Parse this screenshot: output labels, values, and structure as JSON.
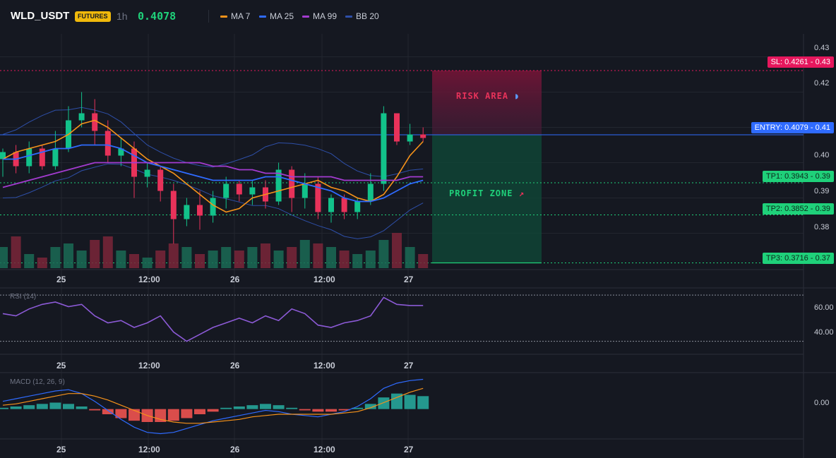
{
  "header": {
    "symbol": "WLD_USDT",
    "badge": "FUTURES",
    "timeframe": "1h",
    "price": "0.4078",
    "legend": [
      {
        "label": "MA 7",
        "color": "#f7931a"
      },
      {
        "label": "MA 25",
        "color": "#2f6bff"
      },
      {
        "label": "MA 99",
        "color": "#a33bd0"
      },
      {
        "label": "BB 20",
        "color": "#2e4fa8"
      }
    ]
  },
  "colors": {
    "up": "#12c28a",
    "down": "#e8325a",
    "background": "#151821",
    "grid": "#22262f"
  },
  "levels": {
    "sl": {
      "text": "SL: 0.4261",
      "axis": "0.43",
      "value": 0.4261,
      "color": "#e6175d"
    },
    "entry": {
      "text": "ENTRY: 0.4079",
      "axis": "0.41",
      "value": 0.4079,
      "color": "#2f6bff"
    },
    "tp1": {
      "text": "TP1: 0.3943",
      "axis": "0.39",
      "value": 0.3943,
      "color": "#1fd17a"
    },
    "tp2": {
      "text": "TP2: 0.3852",
      "axis": "0.39",
      "value": 0.3852,
      "color": "#1fd17a"
    },
    "tp3": {
      "text": "TP3: 0.3716",
      "axis": "0.37",
      "value": 0.3716,
      "color": "#1fd17a"
    }
  },
  "zones": {
    "risk": "RISK AREA",
    "profit": "PROFIT ZONE"
  },
  "price_axis": [
    "0.43",
    "0.42",
    "0.41",
    "0.40",
    "0.39",
    "0.38",
    "0.37"
  ],
  "time_axis": [
    "25",
    "12:00",
    "26",
    "12:00",
    "27"
  ],
  "rsi": {
    "title": "RSI (14)",
    "axis": [
      "60.00",
      "40.00"
    ]
  },
  "macd": {
    "title": "MACD (12, 26, 9)",
    "axis": [
      "0.00"
    ]
  },
  "chart_data": {
    "type": "candlestick",
    "ylim": [
      0.3705,
      0.4325
    ],
    "x_ticks": [
      "25",
      "12:00",
      "26",
      "12:00",
      "27"
    ],
    "series": [
      {
        "name": "MA 7",
        "values": [
          0.401,
          0.403,
          0.404,
          0.405,
          0.406,
          0.408,
          0.411,
          0.412,
          0.41,
          0.407,
          0.404,
          0.401,
          0.399,
          0.397,
          0.394,
          0.391,
          0.388,
          0.386,
          0.387,
          0.39,
          0.391,
          0.392,
          0.393,
          0.394,
          0.395,
          0.393,
          0.392,
          0.39,
          0.389,
          0.391,
          0.396,
          0.402,
          0.406
        ]
      },
      {
        "name": "MA 25",
        "values": [
          0.401,
          0.401,
          0.402,
          0.403,
          0.404,
          0.404,
          0.405,
          0.405,
          0.405,
          0.404,
          0.402,
          0.4,
          0.399,
          0.398,
          0.397,
          0.396,
          0.395,
          0.395,
          0.395,
          0.395,
          0.396,
          0.396,
          0.395,
          0.394,
          0.393,
          0.392,
          0.39,
          0.389,
          0.389,
          0.39,
          0.392,
          0.394,
          0.395
        ]
      },
      {
        "name": "MA 99",
        "values": [
          0.393,
          0.394,
          0.395,
          0.396,
          0.397,
          0.398,
          0.399,
          0.4,
          0.4,
          0.4,
          0.4,
          0.4,
          0.4,
          0.4,
          0.4,
          0.4,
          0.399,
          0.399,
          0.398,
          0.398,
          0.397,
          0.397,
          0.396,
          0.396,
          0.396,
          0.396,
          0.395,
          0.395,
          0.395,
          0.395,
          0.395,
          0.396,
          0.396
        ]
      }
    ],
    "candles": [
      [
        0.401,
        0.403,
        0.396,
        0.404
      ],
      [
        0.403,
        0.399,
        0.397,
        0.405
      ],
      [
        0.399,
        0.404,
        0.397,
        0.406
      ],
      [
        0.404,
        0.399,
        0.398,
        0.405
      ],
      [
        0.399,
        0.404,
        0.398,
        0.409
      ],
      [
        0.404,
        0.412,
        0.403,
        0.416
      ],
      [
        0.412,
        0.414,
        0.41,
        0.42
      ],
      [
        0.414,
        0.409,
        0.405,
        0.418
      ],
      [
        0.409,
        0.402,
        0.4,
        0.412
      ],
      [
        0.402,
        0.404,
        0.399,
        0.407
      ],
      [
        0.404,
        0.396,
        0.39,
        0.406
      ],
      [
        0.396,
        0.398,
        0.393,
        0.4
      ],
      [
        0.398,
        0.392,
        0.389,
        0.399
      ],
      [
        0.392,
        0.384,
        0.377,
        0.394
      ],
      [
        0.384,
        0.388,
        0.382,
        0.39
      ],
      [
        0.388,
        0.385,
        0.381,
        0.392
      ],
      [
        0.385,
        0.39,
        0.383,
        0.392
      ],
      [
        0.39,
        0.394,
        0.387,
        0.396
      ],
      [
        0.394,
        0.391,
        0.389,
        0.395
      ],
      [
        0.391,
        0.393,
        0.388,
        0.395
      ],
      [
        0.393,
        0.389,
        0.387,
        0.395
      ],
      [
        0.389,
        0.398,
        0.388,
        0.4
      ],
      [
        0.398,
        0.39,
        0.386,
        0.399
      ],
      [
        0.39,
        0.394,
        0.387,
        0.397
      ],
      [
        0.394,
        0.386,
        0.384,
        0.396
      ],
      [
        0.386,
        0.39,
        0.383,
        0.391
      ],
      [
        0.39,
        0.386,
        0.384,
        0.391
      ],
      [
        0.386,
        0.389,
        0.384,
        0.39
      ],
      [
        0.389,
        0.394,
        0.388,
        0.397
      ],
      [
        0.394,
        0.414,
        0.392,
        0.416
      ],
      [
        0.414,
        0.406,
        0.405,
        0.414
      ],
      [
        0.406,
        0.408,
        0.405,
        0.411
      ],
      [
        0.408,
        0.407,
        0.406,
        0.41
      ]
    ],
    "volume": [
      0.6,
      0.9,
      0.4,
      0.3,
      0.6,
      0.7,
      0.5,
      0.8,
      0.9,
      0.5,
      0.4,
      0.3,
      0.5,
      0.7,
      0.6,
      0.4,
      0.5,
      0.6,
      0.5,
      0.6,
      0.7,
      0.5,
      0.6,
      0.8,
      0.7,
      0.6,
      0.5,
      0.4,
      0.5,
      0.8,
      1.0,
      0.6,
      0.4
    ],
    "rsi_values": [
      54,
      52,
      58,
      62,
      64,
      60,
      62,
      52,
      46,
      48,
      42,
      46,
      52,
      38,
      30,
      36,
      42,
      46,
      50,
      46,
      52,
      48,
      58,
      54,
      44,
      42,
      46,
      48,
      52,
      68,
      62,
      61,
      61
    ],
    "rsi_levels": [
      70,
      30
    ],
    "rsi_ylim": [
      20,
      75
    ],
    "macd_hist": [
      0.1,
      0.2,
      0.3,
      0.4,
      0.5,
      0.4,
      0.2,
      -0.1,
      -0.4,
      -0.7,
      -0.9,
      -1.0,
      -1.0,
      -0.9,
      -0.7,
      -0.4,
      -0.2,
      0.1,
      0.2,
      0.3,
      0.4,
      0.3,
      0.1,
      -0.1,
      -0.2,
      -0.2,
      -0.1,
      0.1,
      0.4,
      0.9,
      1.2,
      1.1,
      1.0
    ],
    "macd_line": [
      0.6,
      0.8,
      1.0,
      1.2,
      1.4,
      1.5,
      1.2,
      0.6,
      -0.1,
      -0.8,
      -1.4,
      -1.8,
      -1.9,
      -1.8,
      -1.5,
      -1.2,
      -0.9,
      -0.7,
      -0.5,
      -0.3,
      -0.1,
      -0.2,
      -0.4,
      -0.5,
      -0.6,
      -0.4,
      -0.2,
      0.2,
      0.8,
      1.6,
      2.0,
      2.2,
      2.3
    ],
    "macd_signal": [
      0.3,
      0.4,
      0.6,
      0.8,
      1.0,
      1.2,
      1.2,
      1.0,
      0.7,
      0.3,
      -0.1,
      -0.5,
      -0.8,
      -1.0,
      -1.1,
      -1.1,
      -1.0,
      -0.9,
      -0.8,
      -0.6,
      -0.5,
      -0.4,
      -0.4,
      -0.4,
      -0.4,
      -0.4,
      -0.3,
      -0.2,
      0.1,
      0.5,
      0.9,
      1.3,
      1.6
    ],
    "macd_ylim": [
      -2.2,
      2.6
    ]
  }
}
